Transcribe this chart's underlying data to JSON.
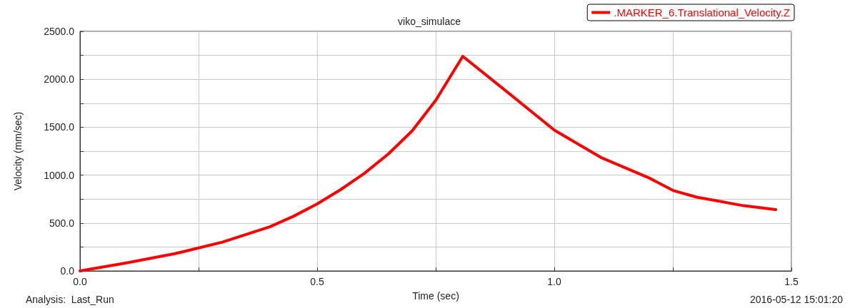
{
  "chart_data": {
    "type": "line",
    "title": "viko_simulace",
    "xlabel": "Time (sec)",
    "ylabel": "Velocity (mm/sec)",
    "annotations": [
      "Analysis:  Last_Run",
      "2016-05-12 15:01:20"
    ],
    "x": [
      0,
      0.1,
      0.2,
      0.25,
      0.3,
      0.4,
      0.45,
      0.5,
      0.55,
      0.6,
      0.65,
      0.7,
      0.75,
      0.807,
      0.9,
      1.0,
      1.1,
      1.2,
      1.25,
      1.3,
      1.4,
      1.467
    ],
    "series": [
      {
        "name": ".MARKER_6.Translational_Velocity.Z",
        "color": "#ff0000",
        "values": [
          0,
          85,
          180,
          240,
          300,
          460,
          570,
          700,
          850,
          1020,
          1220,
          1460,
          1780,
          2240,
          1870,
          1470,
          1180,
          970,
          840,
          770,
          680,
          640
        ]
      }
    ],
    "xlim": [
      0,
      1.5
    ],
    "xticks": [
      {
        "value": 0,
        "label": "0.0"
      },
      {
        "value": 0.25,
        "label": null
      },
      {
        "value": 0.5,
        "label": "0.5"
      },
      {
        "value": 0.75,
        "label": null
      },
      {
        "value": 1,
        "label": "1.0"
      },
      {
        "value": 1.25,
        "label": null
      },
      {
        "value": 1.5,
        "label": "1.5"
      }
    ],
    "ylim": [
      0,
      2500
    ],
    "yticks": [
      {
        "value": 0,
        "label": "0.0"
      },
      {
        "value": 250,
        "label": null
      },
      {
        "value": 500,
        "label": "500.0"
      },
      {
        "value": 750,
        "label": null
      },
      {
        "value": 1000,
        "label": "1000.0"
      },
      {
        "value": 1250,
        "label": null
      },
      {
        "value": 1500,
        "label": "1500.0"
      },
      {
        "value": 1750,
        "label": null
      },
      {
        "value": 2000,
        "label": "2000.0"
      },
      {
        "value": 2250,
        "label": null
      },
      {
        "value": 2500,
        "label": "2500.0"
      }
    ],
    "grid": true,
    "legend": "top right",
    "marker": "none",
    "line_style": "solid"
  }
}
